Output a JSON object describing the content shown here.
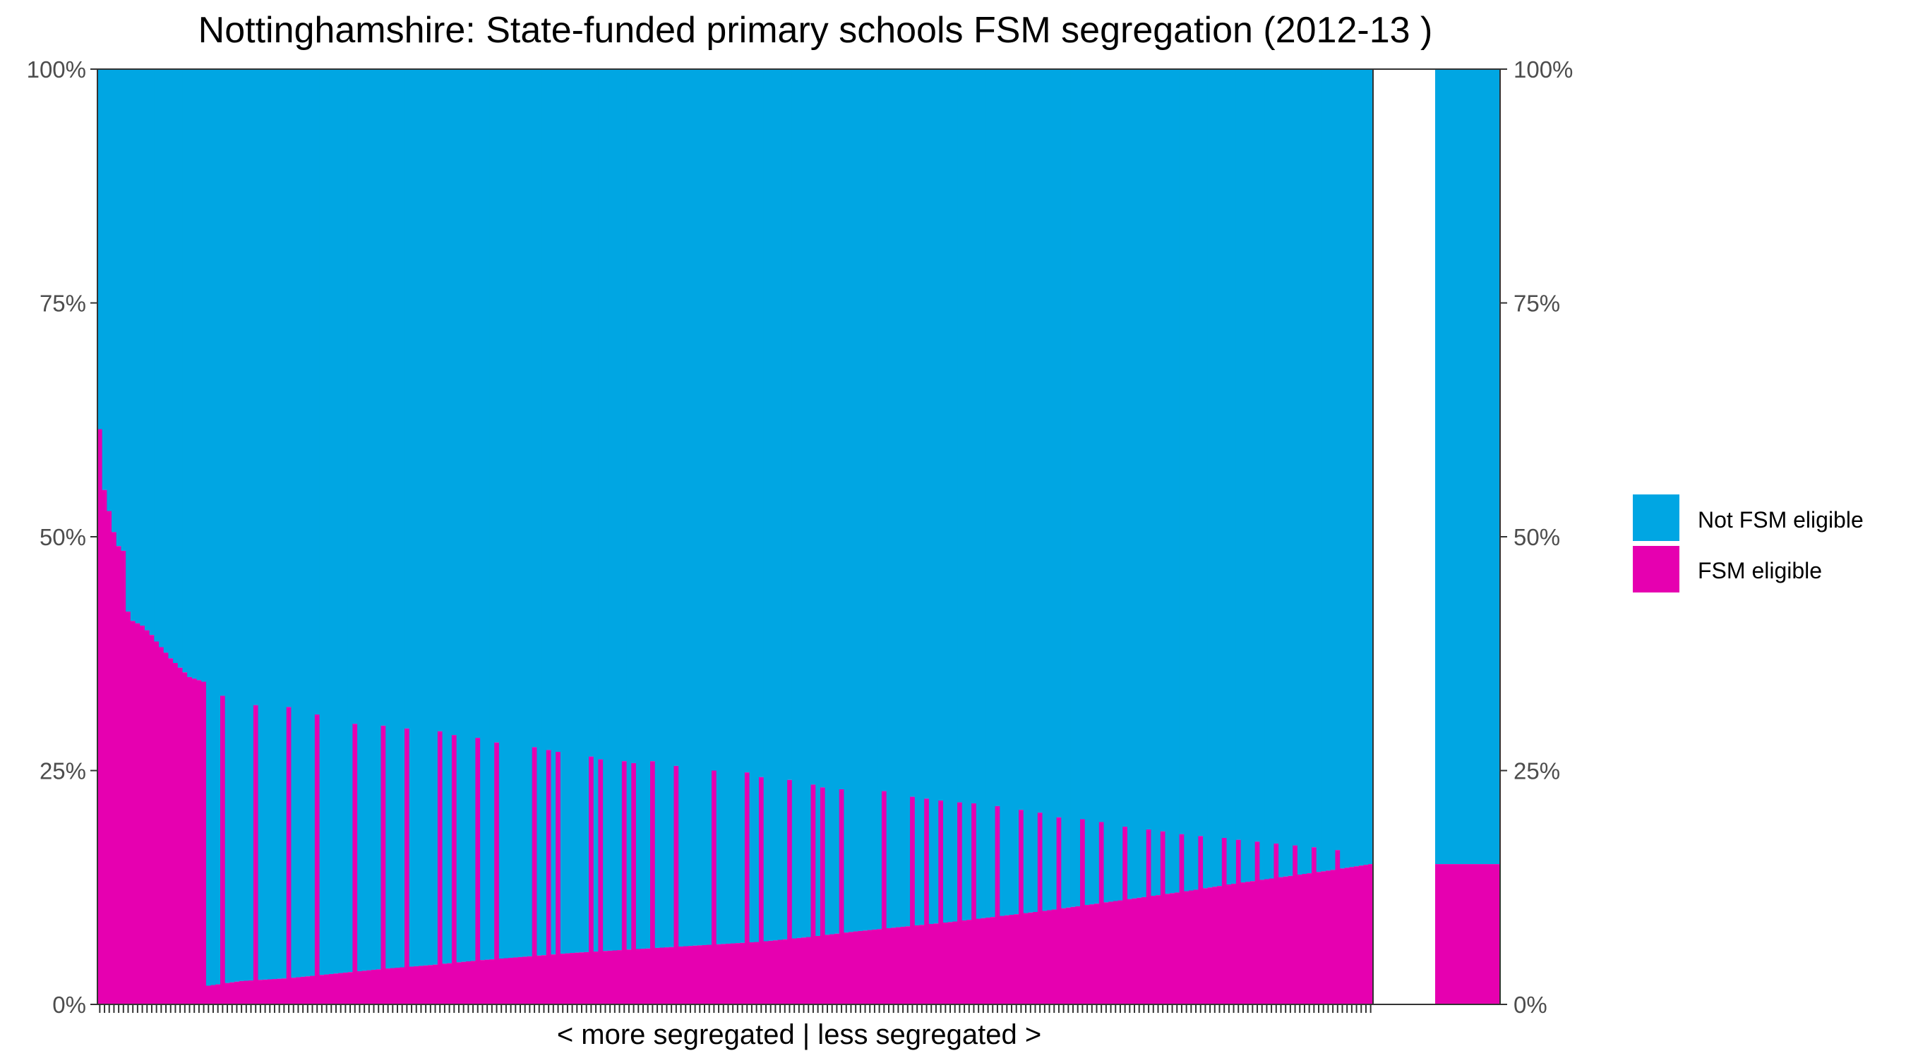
{
  "chart_data": {
    "type": "bar",
    "title": "Nottinghamshire: State-funded primary schools FSM segregation (2012-13 )",
    "xlabel": "< more segregated | less segregated >",
    "ylabel": "",
    "ylim": [
      0,
      1
    ],
    "y_ticks": [
      "0%",
      "25%",
      "50%",
      "75%",
      "100%"
    ],
    "y_tick_values": [
      0,
      0.25,
      0.5,
      0.75,
      1
    ],
    "stacked_100_percent": true,
    "n_schools": 270,
    "series": [
      {
        "name": "FSM eligible",
        "color": "#e600b0"
      },
      {
        "name": "Not FSM eligible",
        "color": "#00a6e3"
      }
    ],
    "legend": {
      "position": "right",
      "entries": [
        "Not FSM eligible",
        "FSM eligible"
      ]
    },
    "fsm_share_anchors": [
      [
        0,
        0.615
      ],
      [
        1,
        0.55
      ],
      [
        3,
        0.505
      ],
      [
        4,
        0.49
      ],
      [
        5,
        0.485
      ],
      [
        6,
        0.42
      ],
      [
        7,
        0.41
      ],
      [
        9,
        0.405
      ],
      [
        10,
        0.4
      ],
      [
        11,
        0.395
      ],
      [
        12,
        0.388
      ],
      [
        15,
        0.37
      ],
      [
        19,
        0.35
      ],
      [
        22,
        0.345
      ],
      [
        23,
        0.02
      ],
      [
        30,
        0.025
      ],
      [
        40,
        0.028
      ],
      [
        50,
        0.033
      ],
      [
        60,
        0.038
      ],
      [
        70,
        0.042
      ],
      [
        80,
        0.047
      ],
      [
        90,
        0.051
      ],
      [
        100,
        0.055
      ],
      [
        110,
        0.058
      ],
      [
        120,
        0.061
      ],
      [
        130,
        0.064
      ],
      [
        140,
        0.067
      ],
      [
        150,
        0.072
      ],
      [
        160,
        0.078
      ],
      [
        170,
        0.083
      ],
      [
        180,
        0.088
      ],
      [
        190,
        0.094
      ],
      [
        200,
        0.1
      ],
      [
        210,
        0.107
      ],
      [
        220,
        0.114
      ],
      [
        230,
        0.121
      ],
      [
        240,
        0.129
      ],
      [
        250,
        0.136
      ],
      [
        260,
        0.143
      ],
      [
        269,
        0.15
      ]
    ],
    "fsm_share_spikes": [
      [
        26,
        0.33
      ],
      [
        33,
        0.32
      ],
      [
        40,
        0.318
      ],
      [
        46,
        0.31
      ],
      [
        54,
        0.3
      ],
      [
        60,
        0.298
      ],
      [
        65,
        0.295
      ],
      [
        72,
        0.292
      ],
      [
        75,
        0.288
      ],
      [
        80,
        0.285
      ],
      [
        84,
        0.28
      ],
      [
        92,
        0.275
      ],
      [
        95,
        0.272
      ],
      [
        97,
        0.27
      ],
      [
        104,
        0.265
      ],
      [
        106,
        0.262
      ],
      [
        111,
        0.26
      ],
      [
        113,
        0.258
      ],
      [
        117,
        0.26
      ],
      [
        122,
        0.255
      ],
      [
        130,
        0.25
      ],
      [
        137,
        0.248
      ],
      [
        140,
        0.243
      ],
      [
        146,
        0.24
      ],
      [
        151,
        0.235
      ],
      [
        153,
        0.232
      ],
      [
        157,
        0.23
      ],
      [
        166,
        0.228
      ],
      [
        172,
        0.222
      ],
      [
        175,
        0.22
      ],
      [
        178,
        0.218
      ],
      [
        182,
        0.216
      ],
      [
        185,
        0.215
      ],
      [
        190,
        0.212
      ],
      [
        195,
        0.208
      ],
      [
        199,
        0.205
      ],
      [
        203,
        0.2
      ],
      [
        208,
        0.198
      ],
      [
        212,
        0.195
      ],
      [
        217,
        0.19
      ],
      [
        222,
        0.187
      ],
      [
        225,
        0.185
      ],
      [
        229,
        0.182
      ],
      [
        233,
        0.18
      ],
      [
        238,
        0.178
      ],
      [
        241,
        0.176
      ],
      [
        245,
        0.174
      ],
      [
        249,
        0.172
      ],
      [
        253,
        0.17
      ],
      [
        257,
        0.168
      ],
      [
        262,
        0.165
      ]
    ],
    "summary_bar": {
      "fsm_eligible": 0.15,
      "not_fsm_eligible": 0.85
    }
  }
}
